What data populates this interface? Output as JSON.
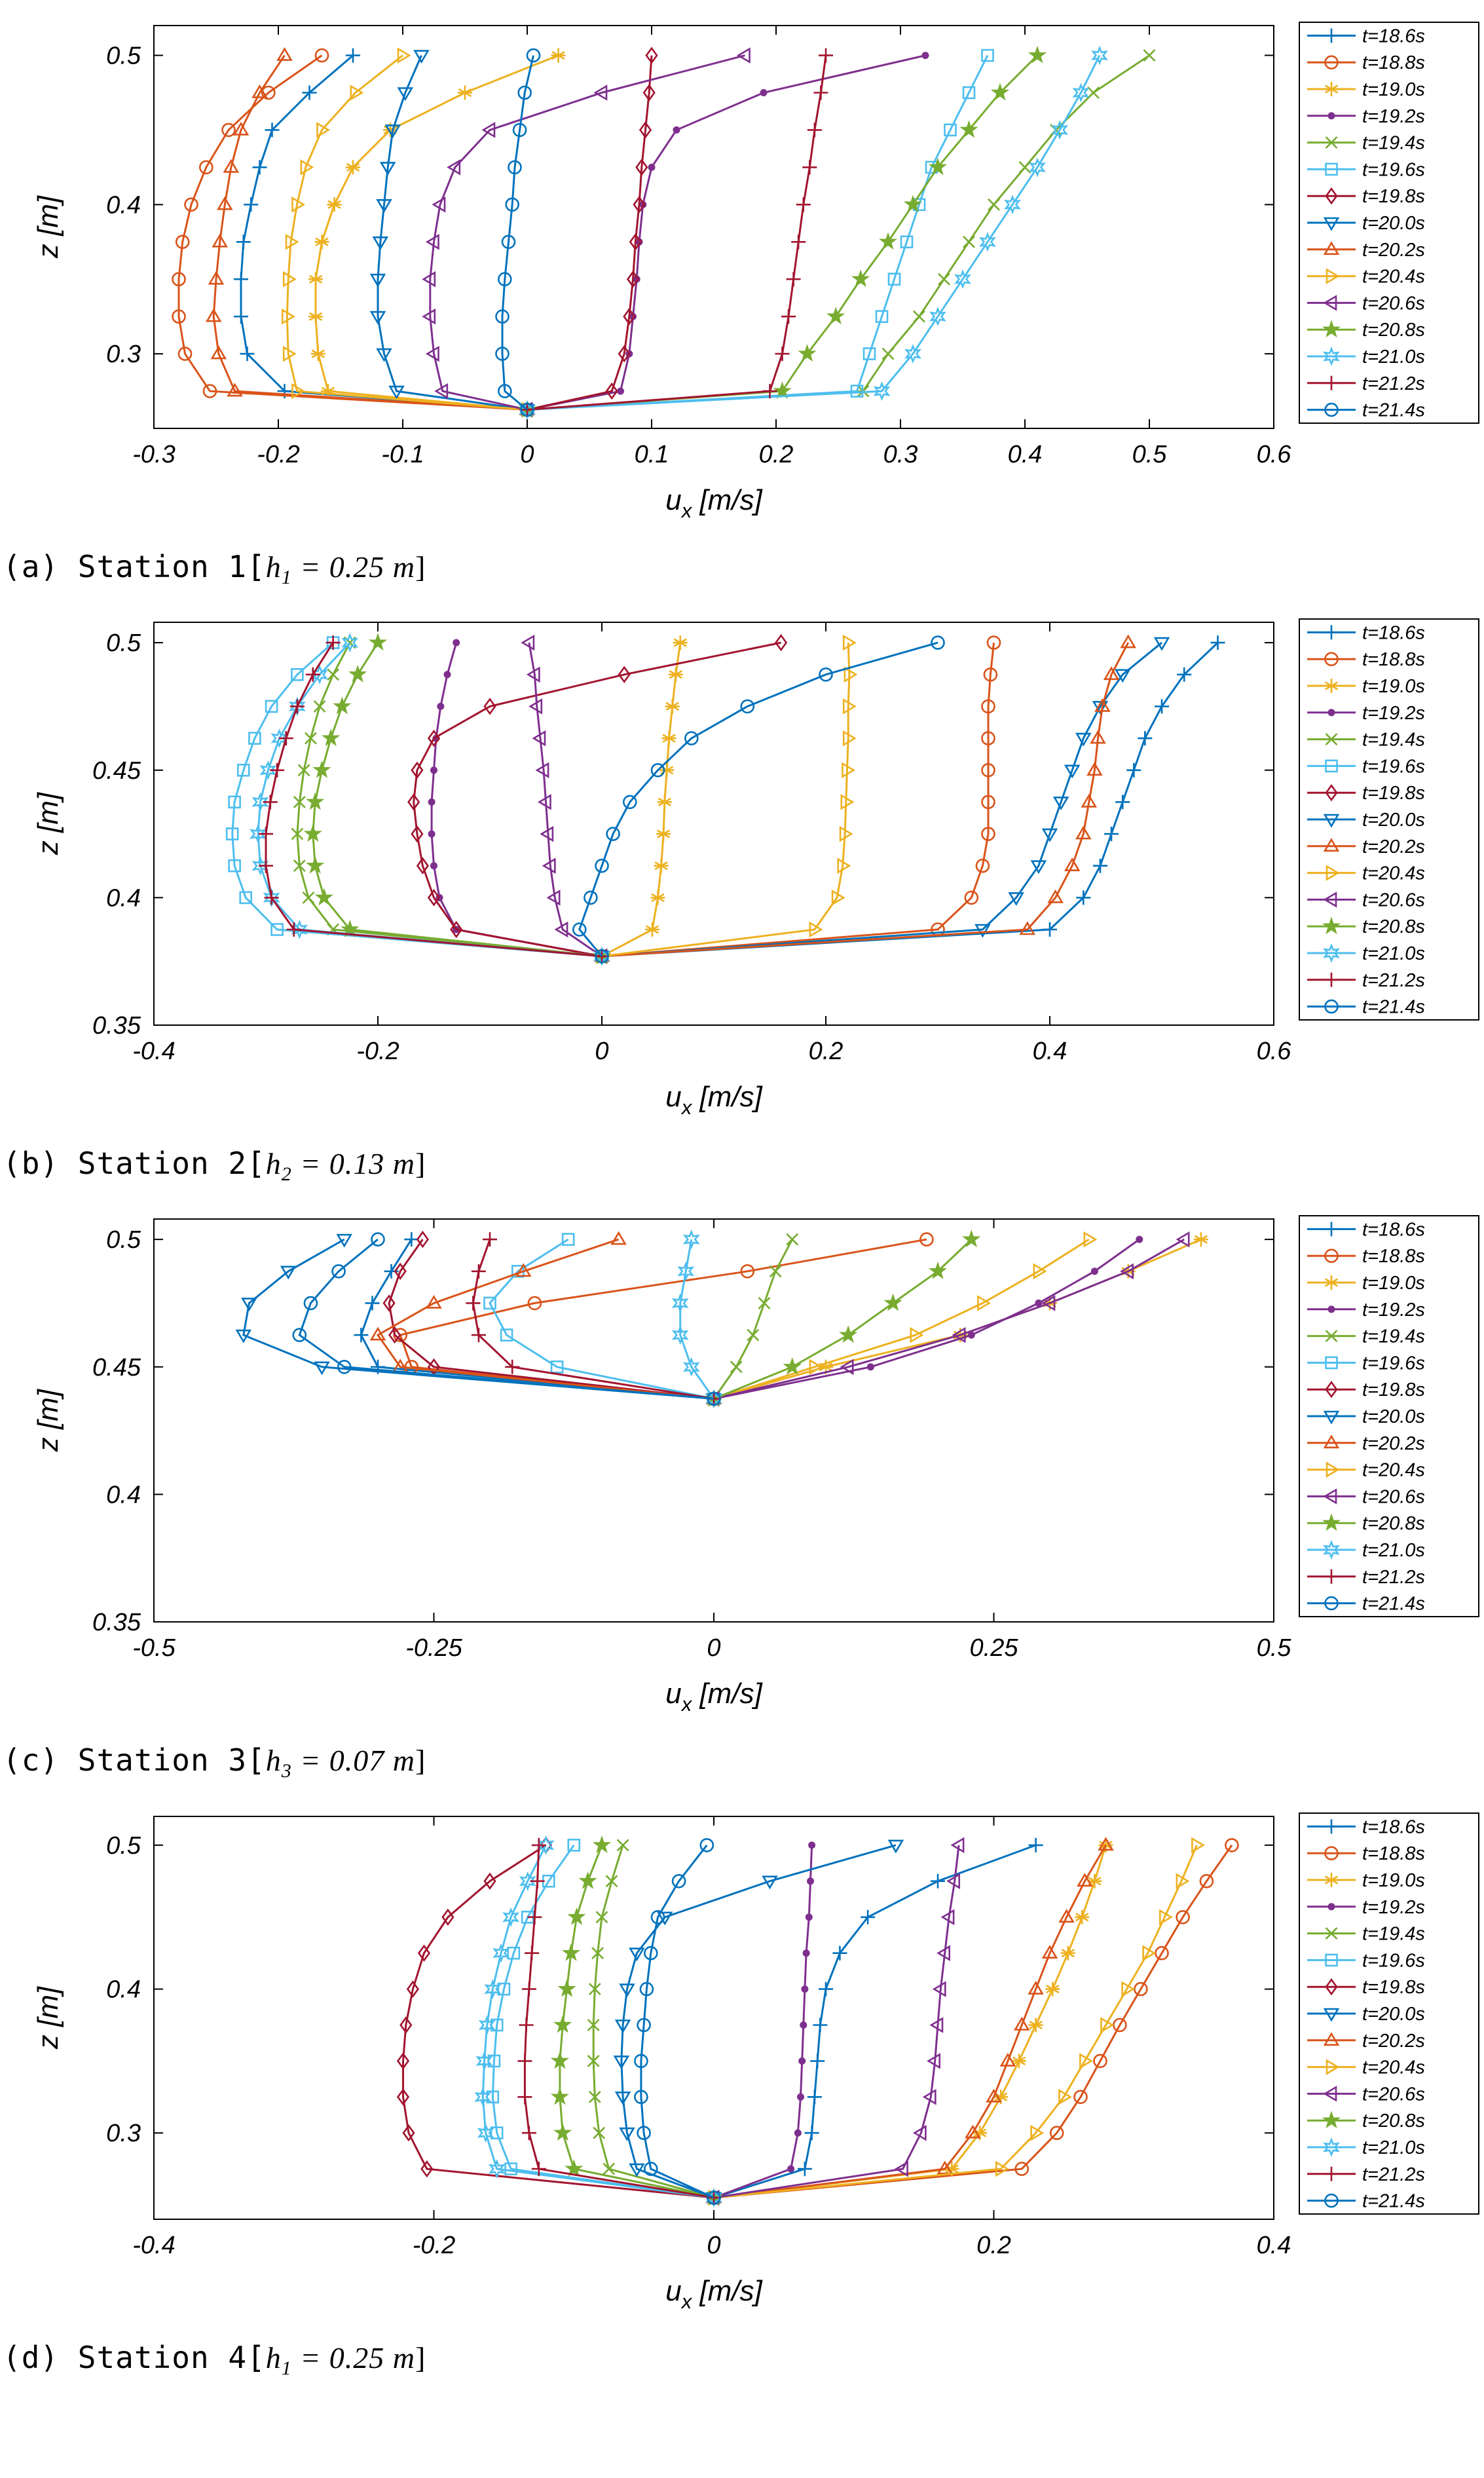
{
  "labels": {
    "xlabel_base": "u",
    "xlabel_sub": "x",
    "xlabel_unit": " [m/s]",
    "ylabel": "z [m]",
    "series": [
      "t=18.6s",
      "t=18.8s",
      "t=19.0s",
      "t=19.2s",
      "t=19.4s",
      "t=19.6s",
      "t=19.8s",
      "t=20.0s",
      "t=20.2s",
      "t=20.4s",
      "t=20.6s",
      "t=20.8s",
      "t=21.0s",
      "t=21.2s",
      "t=21.4s"
    ]
  },
  "styles": {
    "colors": [
      "#0072BD",
      "#D95319",
      "#EDB120",
      "#7E2F8E",
      "#77AC30",
      "#4DBEEE",
      "#A2142F",
      "#0072BD",
      "#D95319",
      "#EDB120",
      "#7E2F8E",
      "#77AC30",
      "#4DBEEE",
      "#A2142F",
      "#0072BD"
    ],
    "markers": [
      "+",
      "o",
      "*",
      ".",
      "x",
      "s",
      "d",
      "v",
      "^",
      ">",
      "<",
      "p",
      "h",
      "+",
      "o"
    ],
    "axis_color": "#000000",
    "background": "#ffffff"
  },
  "chart_data": [
    {
      "id": "a",
      "type": "line",
      "caption": {
        "prefix": "(a) Station 1[",
        "hvar": "h",
        "hsub": "1",
        "mid": " = 0.25 m",
        "close": "]"
      },
      "xlim": [
        -0.3,
        0.6
      ],
      "xticks": [
        "-0.3",
        "-0.2",
        "-0.1",
        "0",
        "0.1",
        "0.2",
        "0.3",
        "0.4",
        "0.5",
        "0.6"
      ],
      "ylim": [
        0.25,
        0.52
      ],
      "yticks": [
        "0.3",
        "0.4",
        "0.5"
      ],
      "z": [
        0.2625,
        0.275,
        0.3,
        0.325,
        0.35,
        0.375,
        0.4,
        0.425,
        0.45,
        0.475,
        0.5
      ],
      "u": [
        [
          0,
          -0.195,
          -0.225,
          -0.23,
          -0.23,
          -0.228,
          -0.222,
          -0.215,
          -0.205,
          -0.175,
          -0.14
        ],
        [
          0,
          -0.255,
          -0.275,
          -0.28,
          -0.28,
          -0.277,
          -0.27,
          -0.258,
          -0.24,
          -0.208,
          -0.165
        ],
        [
          0,
          -0.16,
          -0.168,
          -0.17,
          -0.17,
          -0.165,
          -0.155,
          -0.14,
          -0.11,
          -0.05,
          0.025
        ],
        [
          0,
          0.075,
          0.082,
          0.085,
          0.088,
          0.09,
          0.093,
          0.1,
          0.12,
          0.19,
          0.32
        ],
        [
          0,
          0.27,
          0.29,
          0.315,
          0.335,
          0.355,
          0.375,
          0.4,
          0.425,
          0.455,
          0.5
        ],
        [
          0,
          0.265,
          0.275,
          0.285,
          0.295,
          0.305,
          0.315,
          0.325,
          0.34,
          0.355,
          0.37
        ],
        [
          0,
          0.068,
          0.078,
          0.082,
          0.085,
          0.087,
          0.09,
          0.092,
          0.095,
          0.098,
          0.1
        ],
        [
          0,
          -0.105,
          -0.115,
          -0.12,
          -0.12,
          -0.118,
          -0.115,
          -0.112,
          -0.108,
          -0.098,
          -0.085
        ],
        [
          0,
          -0.235,
          -0.248,
          -0.252,
          -0.25,
          -0.247,
          -0.243,
          -0.238,
          -0.23,
          -0.215,
          -0.195
        ],
        [
          0,
          -0.185,
          -0.192,
          -0.193,
          -0.192,
          -0.19,
          -0.185,
          -0.178,
          -0.165,
          -0.138,
          -0.1
        ],
        [
          0,
          -0.068,
          -0.075,
          -0.078,
          -0.078,
          -0.075,
          -0.07,
          -0.058,
          -0.03,
          0.06,
          0.175
        ],
        [
          0,
          0.205,
          0.225,
          0.248,
          0.268,
          0.29,
          0.31,
          0.33,
          0.355,
          0.38,
          0.41
        ],
        [
          0,
          0.285,
          0.31,
          0.33,
          0.35,
          0.37,
          0.39,
          0.41,
          0.428,
          0.445,
          0.46
        ],
        [
          0,
          0.195,
          0.205,
          0.21,
          0.214,
          0.218,
          0.222,
          0.227,
          0.231,
          0.236,
          0.24
        ],
        [
          0,
          -0.018,
          -0.02,
          -0.02,
          -0.018,
          -0.015,
          -0.012,
          -0.01,
          -0.006,
          -0.002,
          0.005
        ]
      ]
    },
    {
      "id": "b",
      "type": "line",
      "caption": {
        "prefix": "(b) Station 2[",
        "hvar": "h",
        "hsub": "2",
        "mid": " = 0.13 m",
        "close": "]"
      },
      "xlim": [
        -0.4,
        0.6
      ],
      "xticks": [
        "-0.4",
        "-0.2",
        "0",
        "0.2",
        "0.4",
        "0.6"
      ],
      "ylim": [
        0.35,
        0.508
      ],
      "yticks": [
        "0.35",
        "0.4",
        "0.45",
        "0.5"
      ],
      "z": [
        0.377,
        0.3875,
        0.4,
        0.4125,
        0.425,
        0.4375,
        0.45,
        0.4625,
        0.475,
        0.4875,
        0.5
      ],
      "u": [
        [
          0,
          0.4,
          0.43,
          0.445,
          0.455,
          0.465,
          0.475,
          0.485,
          0.5,
          0.52,
          0.55
        ],
        [
          0,
          0.3,
          0.33,
          0.34,
          0.345,
          0.345,
          0.345,
          0.345,
          0.345,
          0.347,
          0.35
        ],
        [
          0,
          0.045,
          0.05,
          0.053,
          0.055,
          0.056,
          0.058,
          0.06,
          0.063,
          0.066,
          0.07
        ],
        [
          0,
          -0.13,
          -0.145,
          -0.15,
          -0.152,
          -0.152,
          -0.15,
          -0.148,
          -0.144,
          -0.138,
          -0.13
        ],
        [
          0,
          -0.24,
          -0.262,
          -0.27,
          -0.272,
          -0.27,
          -0.266,
          -0.26,
          -0.252,
          -0.24,
          -0.225
        ],
        [
          0,
          -0.29,
          -0.318,
          -0.328,
          -0.33,
          -0.328,
          -0.32,
          -0.31,
          -0.295,
          -0.272,
          -0.24
        ],
        [
          0,
          -0.13,
          -0.15,
          -0.16,
          -0.165,
          -0.168,
          -0.165,
          -0.15,
          -0.1,
          0.02,
          0.16
        ],
        [
          0,
          0.34,
          0.37,
          0.39,
          0.4,
          0.41,
          0.42,
          0.43,
          0.445,
          0.465,
          0.5
        ],
        [
          0,
          0.38,
          0.405,
          0.42,
          0.43,
          0.435,
          0.44,
          0.443,
          0.447,
          0.455,
          0.47
        ],
        [
          0,
          0.19,
          0.21,
          0.215,
          0.217,
          0.218,
          0.219,
          0.22,
          0.22,
          0.221,
          0.22
        ],
        [
          0,
          -0.035,
          -0.042,
          -0.046,
          -0.048,
          -0.05,
          -0.052,
          -0.055,
          -0.058,
          -0.06,
          -0.065
        ],
        [
          0,
          -0.225,
          -0.248,
          -0.256,
          -0.258,
          -0.256,
          -0.25,
          -0.242,
          -0.232,
          -0.218,
          -0.2
        ],
        [
          0,
          -0.27,
          -0.295,
          -0.305,
          -0.307,
          -0.305,
          -0.298,
          -0.288,
          -0.272,
          -0.252,
          -0.225
        ],
        [
          0,
          -0.275,
          -0.295,
          -0.3,
          -0.3,
          -0.296,
          -0.29,
          -0.282,
          -0.272,
          -0.258,
          -0.24
        ],
        [
          0,
          -0.02,
          -0.01,
          0.0,
          0.01,
          0.025,
          0.05,
          0.08,
          0.13,
          0.2,
          0.3
        ]
      ]
    },
    {
      "id": "c",
      "type": "line",
      "caption": {
        "prefix": "(c) Station 3[",
        "hvar": "h",
        "hsub": "3",
        "mid": " = 0.07 m",
        "close": "]"
      },
      "xlim": [
        -0.5,
        0.5
      ],
      "xticks": [
        "-0.5",
        "-0.25",
        "0",
        "0.25",
        "0.5"
      ],
      "ylim": [
        0.35,
        0.508
      ],
      "yticks": [
        "0.35",
        "0.4",
        "0.45",
        "0.5"
      ],
      "z": [
        0.4375,
        0.45,
        0.4625,
        0.475,
        0.4875,
        0.5
      ],
      "u": [
        [
          0,
          -0.3,
          -0.315,
          -0.305,
          -0.288,
          -0.27
        ],
        [
          0,
          -0.27,
          -0.28,
          -0.16,
          0.03,
          0.19
        ],
        [
          0,
          0.1,
          0.22,
          0.3,
          0.37,
          0.435
        ],
        [
          0,
          0.14,
          0.23,
          0.29,
          0.34,
          0.38
        ],
        [
          0,
          0.02,
          0.035,
          0.045,
          0.055,
          0.07
        ],
        [
          0,
          -0.14,
          -0.185,
          -0.2,
          -0.175,
          -0.13
        ],
        [
          0,
          -0.25,
          -0.285,
          -0.29,
          -0.28,
          -0.26
        ],
        [
          0,
          -0.35,
          -0.42,
          -0.415,
          -0.38,
          -0.33
        ],
        [
          0,
          -0.28,
          -0.3,
          -0.25,
          -0.17,
          -0.085
        ],
        [
          0,
          0.09,
          0.18,
          0.24,
          0.29,
          0.335
        ],
        [
          0,
          0.12,
          0.22,
          0.3,
          0.37,
          0.42
        ],
        [
          0,
          0.07,
          0.12,
          0.16,
          0.2,
          0.23
        ],
        [
          0,
          -0.02,
          -0.03,
          -0.03,
          -0.025,
          -0.02
        ],
        [
          0,
          -0.18,
          -0.21,
          -0.215,
          -0.21,
          -0.2
        ],
        [
          0,
          -0.33,
          -0.37,
          -0.36,
          -0.335,
          -0.3
        ]
      ]
    },
    {
      "id": "d",
      "type": "line",
      "caption": {
        "prefix": "(d) Station 4[",
        "hvar": "h",
        "hsub": "1",
        "mid": " = 0.25 m",
        "close": "]"
      },
      "xlim": [
        -0.4,
        0.4
      ],
      "xticks": [
        "-0.4",
        "-0.2",
        "0",
        "0.2",
        "0.4"
      ],
      "ylim": [
        0.24,
        0.52
      ],
      "yticks": [
        "0.3",
        "0.4",
        "0.5"
      ],
      "z": [
        0.255,
        0.275,
        0.3,
        0.325,
        0.35,
        0.375,
        0.4,
        0.425,
        0.45,
        0.475,
        0.5
      ],
      "u": [
        [
          0,
          0.065,
          0.07,
          0.072,
          0.074,
          0.076,
          0.08,
          0.09,
          0.11,
          0.16,
          0.23
        ],
        [
          0,
          0.22,
          0.245,
          0.262,
          0.276,
          0.29,
          0.305,
          0.32,
          0.335,
          0.352,
          0.37
        ],
        [
          0,
          0.17,
          0.19,
          0.205,
          0.218,
          0.23,
          0.242,
          0.253,
          0.263,
          0.272,
          0.28
        ],
        [
          0,
          0.055,
          0.06,
          0.062,
          0.063,
          0.064,
          0.065,
          0.066,
          0.068,
          0.069,
          0.07
        ],
        [
          0,
          -0.075,
          -0.082,
          -0.085,
          -0.086,
          -0.086,
          -0.085,
          -0.083,
          -0.08,
          -0.073,
          -0.065
        ],
        [
          0,
          -0.145,
          -0.155,
          -0.158,
          -0.157,
          -0.155,
          -0.15,
          -0.143,
          -0.133,
          -0.118,
          -0.1
        ],
        [
          0,
          -0.205,
          -0.218,
          -0.222,
          -0.222,
          -0.22,
          -0.215,
          -0.207,
          -0.19,
          -0.16,
          -0.12
        ],
        [
          0,
          -0.055,
          -0.062,
          -0.065,
          -0.066,
          -0.065,
          -0.062,
          -0.055,
          -0.035,
          0.04,
          0.13
        ],
        [
          0,
          0.165,
          0.185,
          0.2,
          0.21,
          0.22,
          0.23,
          0.24,
          0.252,
          0.265,
          0.28
        ],
        [
          0,
          0.205,
          0.23,
          0.25,
          0.265,
          0.28,
          0.295,
          0.31,
          0.322,
          0.334,
          0.345
        ],
        [
          0,
          0.135,
          0.148,
          0.155,
          0.158,
          0.16,
          0.162,
          0.165,
          0.168,
          0.172,
          0.175
        ],
        [
          0,
          -0.1,
          -0.108,
          -0.11,
          -0.11,
          -0.108,
          -0.105,
          -0.102,
          -0.098,
          -0.09,
          -0.08
        ],
        [
          0,
          -0.155,
          -0.163,
          -0.165,
          -0.164,
          -0.162,
          -0.158,
          -0.152,
          -0.145,
          -0.133,
          -0.12
        ],
        [
          0,
          -0.125,
          -0.132,
          -0.135,
          -0.135,
          -0.134,
          -0.132,
          -0.13,
          -0.128,
          -0.126,
          -0.125
        ],
        [
          0,
          -0.045,
          -0.05,
          -0.052,
          -0.052,
          -0.05,
          -0.048,
          -0.045,
          -0.04,
          -0.025,
          -0.005
        ]
      ]
    }
  ]
}
